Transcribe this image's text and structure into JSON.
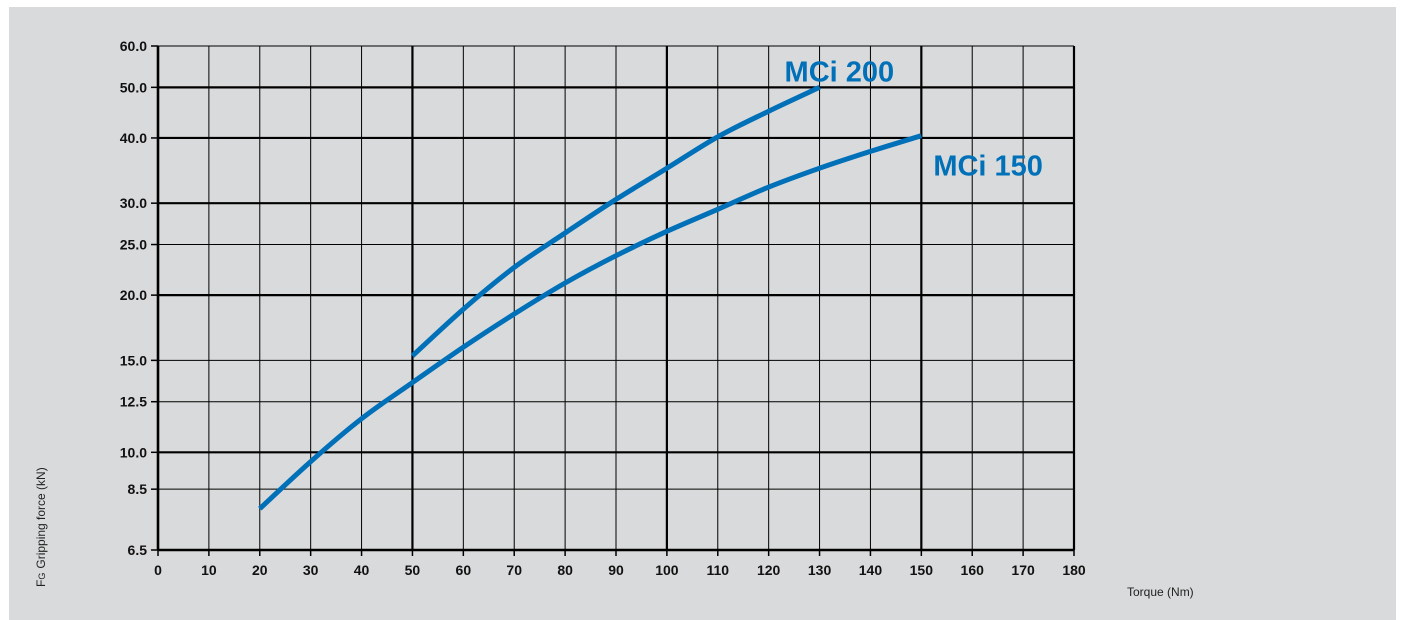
{
  "chart_data": {
    "type": "line",
    "xlabel": "Torque (Nm)",
    "ylabel_prefix": "F",
    "ylabel_subscript": "G",
    "ylabel": "Gripping force (kN)",
    "xlim": [
      0,
      180
    ],
    "ylim": [
      6.5,
      60.0
    ],
    "y_scale": "log",
    "x_ticks": [
      "0",
      "10",
      "20",
      "30",
      "40",
      "50",
      "60",
      "70",
      "80",
      "90",
      "100",
      "110",
      "120",
      "130",
      "140",
      "150",
      "160",
      "170",
      "180"
    ],
    "y_ticks": [
      "6.5",
      "8.5",
      "10.0",
      "12.5",
      "15.0",
      "20.0",
      "25.0",
      "30.0",
      "40.0",
      "50.0",
      "60.0"
    ],
    "grid": true,
    "line_color": "#0070b8",
    "series": [
      {
        "name": "MCi 200",
        "x": [
          50,
          60,
          70,
          80,
          90,
          100,
          110,
          120,
          130
        ],
        "y": [
          15.3,
          18.8,
          22.6,
          26.3,
          30.5,
          35.0,
          40.2,
          45.0,
          50.0
        ]
      },
      {
        "name": "MCi 150",
        "x": [
          20,
          30,
          40,
          50,
          60,
          70,
          80,
          90,
          100,
          110,
          120,
          130,
          140,
          150
        ],
        "y": [
          7.8,
          9.6,
          11.6,
          13.6,
          15.9,
          18.4,
          21.1,
          23.8,
          26.5,
          29.2,
          32.2,
          35.0,
          37.7,
          40.4
        ]
      }
    ]
  }
}
